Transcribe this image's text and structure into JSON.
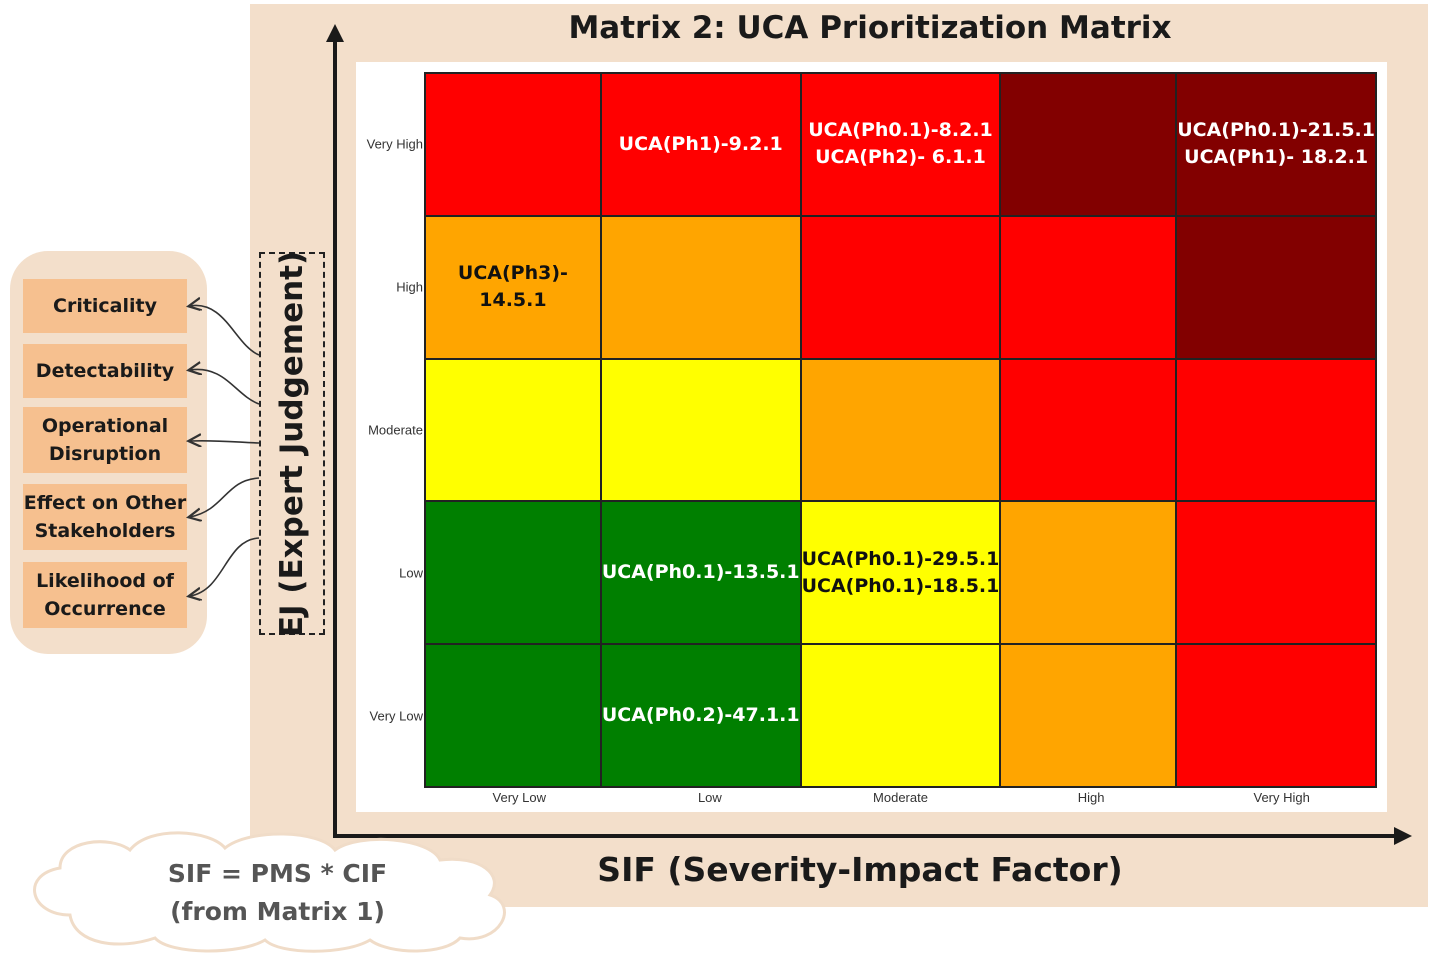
{
  "title": "Matrix 2: UCA Prioritization Matrix",
  "x_axis_title": "SIF (Severity-Impact Factor)",
  "y_axis_title": "EJ (Expert Judgement)",
  "x_levels": [
    "Very Low",
    "Low",
    "Moderate",
    "High",
    "Very High"
  ],
  "y_levels": [
    "Very High",
    "High",
    "Moderate",
    "Low",
    "Very Low"
  ],
  "colors": {
    "dark_red": "#820000",
    "red": "#ff0000",
    "orange": "#ffa500",
    "yellow": "#ffff00",
    "green": "#007f00",
    "panel": "#f3dfcb",
    "factor_box": "#f6c08f"
  },
  "matrix": [
    [
      {
        "color": "red",
        "ucas": []
      },
      {
        "color": "red",
        "ucas": [
          "UCA(Ph1)-9.2.1"
        ]
      },
      {
        "color": "red",
        "ucas": [
          "UCA(Ph0.1)-8.2.1",
          "UCA(Ph2)- 6.1.1"
        ]
      },
      {
        "color": "dark_red",
        "ucas": []
      },
      {
        "color": "dark_red",
        "ucas": [
          "UCA(Ph0.1)-21.5.1",
          "UCA(Ph1)- 18.2.1"
        ]
      }
    ],
    [
      {
        "color": "orange",
        "ucas": [
          "UCA(Ph3)- 14.5.1"
        ]
      },
      {
        "color": "orange",
        "ucas": []
      },
      {
        "color": "red",
        "ucas": []
      },
      {
        "color": "red",
        "ucas": []
      },
      {
        "color": "dark_red",
        "ucas": []
      }
    ],
    [
      {
        "color": "yellow",
        "ucas": []
      },
      {
        "color": "yellow",
        "ucas": []
      },
      {
        "color": "orange",
        "ucas": []
      },
      {
        "color": "red",
        "ucas": []
      },
      {
        "color": "red",
        "ucas": []
      }
    ],
    [
      {
        "color": "green",
        "ucas": []
      },
      {
        "color": "green",
        "ucas": [
          "UCA(Ph0.1)-13.5.1"
        ]
      },
      {
        "color": "yellow",
        "ucas": [
          "UCA(Ph0.1)-29.5.1",
          "UCA(Ph0.1)-18.5.1"
        ]
      },
      {
        "color": "orange",
        "ucas": []
      },
      {
        "color": "red",
        "ucas": []
      }
    ],
    [
      {
        "color": "green",
        "ucas": []
      },
      {
        "color": "green",
        "ucas": [
          "UCA(Ph0.2)-47.1.1"
        ]
      },
      {
        "color": "yellow",
        "ucas": []
      },
      {
        "color": "orange",
        "ucas": []
      },
      {
        "color": "red",
        "ucas": []
      }
    ]
  ],
  "ej_factors": [
    {
      "lines": [
        "Criticality"
      ]
    },
    {
      "lines": [
        "Detectability"
      ]
    },
    {
      "lines": [
        "Operational",
        "Disruption"
      ]
    },
    {
      "lines": [
        "Effect on Other",
        "Stakeholders"
      ]
    },
    {
      "lines": [
        "Likelihood of",
        "Occurrence"
      ]
    }
  ],
  "sif_note": {
    "line1": "SIF = PMS * CIF",
    "line2": "(from Matrix 1)"
  }
}
